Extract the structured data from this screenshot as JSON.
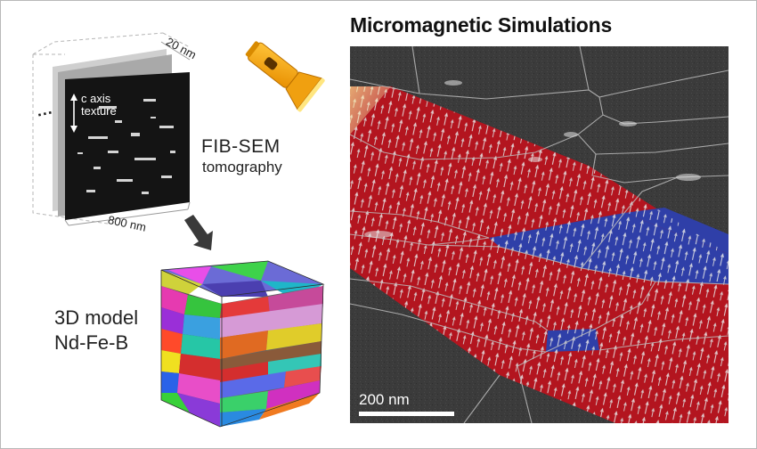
{
  "title": "Micromagnetic Simulations",
  "fib_sem": {
    "line1": "FIB-SEM",
    "line2": "tomography",
    "dim_thickness": "20 nm",
    "dim_width": "800 nm",
    "texture_label_line1": "c axis",
    "texture_label_line2": "texture",
    "dots": "..."
  },
  "model": {
    "line1": "3D model",
    "line2": "Nd-Fe-B"
  },
  "simulation": {
    "scale_bar_label": "200 nm"
  },
  "colors": {
    "domain_red": "#b3151f",
    "domain_blue": "#2f3fa8",
    "background_gray": "#3a3a3a",
    "flashlight": "#f4a916",
    "beam": "#fff3a0"
  },
  "icons": {
    "flashlight": "flashlight-icon",
    "arrow": "arrow-down-right-icon"
  }
}
